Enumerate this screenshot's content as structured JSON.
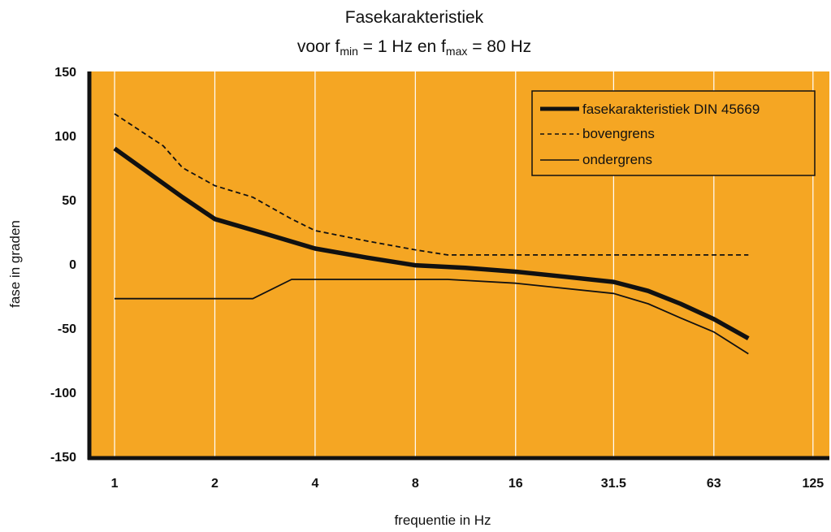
{
  "chart_data": {
    "type": "line",
    "title_line1": "Fasekarakteristiek",
    "title_line2_prefix": "voor f",
    "title_line2_sub1": "min",
    "title_line2_mid": " = 1 Hz en f",
    "title_line2_sub2": "max",
    "title_line2_suffix": " = 80 Hz",
    "xlabel": "frequentie in Hz",
    "ylabel": "fase in graden",
    "x_scale": "log2",
    "xlim": [
      0.84,
      140
    ],
    "ylim": [
      -150,
      150
    ],
    "xticks": [
      {
        "value": 1,
        "label": "1"
      },
      {
        "value": 2,
        "label": "2"
      },
      {
        "value": 4,
        "label": "4"
      },
      {
        "value": 8,
        "label": "8"
      },
      {
        "value": 16,
        "label": "16"
      },
      {
        "value": 31.5,
        "label": "31.5"
      },
      {
        "value": 63,
        "label": "63"
      },
      {
        "value": 125,
        "label": "125"
      }
    ],
    "yticks": [
      150,
      100,
      50,
      0,
      -50,
      -100,
      -150
    ],
    "grid_x": true,
    "grid_y": false,
    "background_color": "#F5A623",
    "legend_position": "top-right",
    "series": [
      {
        "name": "fasekarakteristiek DIN 45669",
        "style": "thick",
        "x": [
          1,
          1.6,
          2,
          2.8,
          4,
          5.7,
          8,
          11.3,
          16,
          22.6,
          31.5,
          40,
          50,
          63,
          80
        ],
        "y": [
          90,
          52,
          35,
          24,
          12,
          5,
          -1,
          -3,
          -6,
          -10,
          -14,
          -21,
          -31,
          -43,
          -58
        ]
      },
      {
        "name": "bovengrens",
        "style": "dashed",
        "x": [
          1,
          1.4,
          1.6,
          2,
          2.6,
          3.4,
          4,
          5.7,
          8,
          10,
          16,
          31.5,
          63,
          80
        ],
        "y": [
          117,
          92,
          75,
          61,
          52,
          35,
          26,
          18,
          11,
          7,
          7,
          7,
          7,
          7
        ]
      },
      {
        "name": "ondergrens",
        "style": "thin",
        "x": [
          1,
          2,
          2.6,
          3.4,
          4,
          8,
          10,
          16,
          31.5,
          40,
          50,
          63,
          80
        ],
        "y": [
          -27,
          -27,
          -27,
          -12,
          -12,
          -12,
          -12,
          -15,
          -23,
          -31,
          -42,
          -53,
          -70
        ]
      }
    ]
  }
}
